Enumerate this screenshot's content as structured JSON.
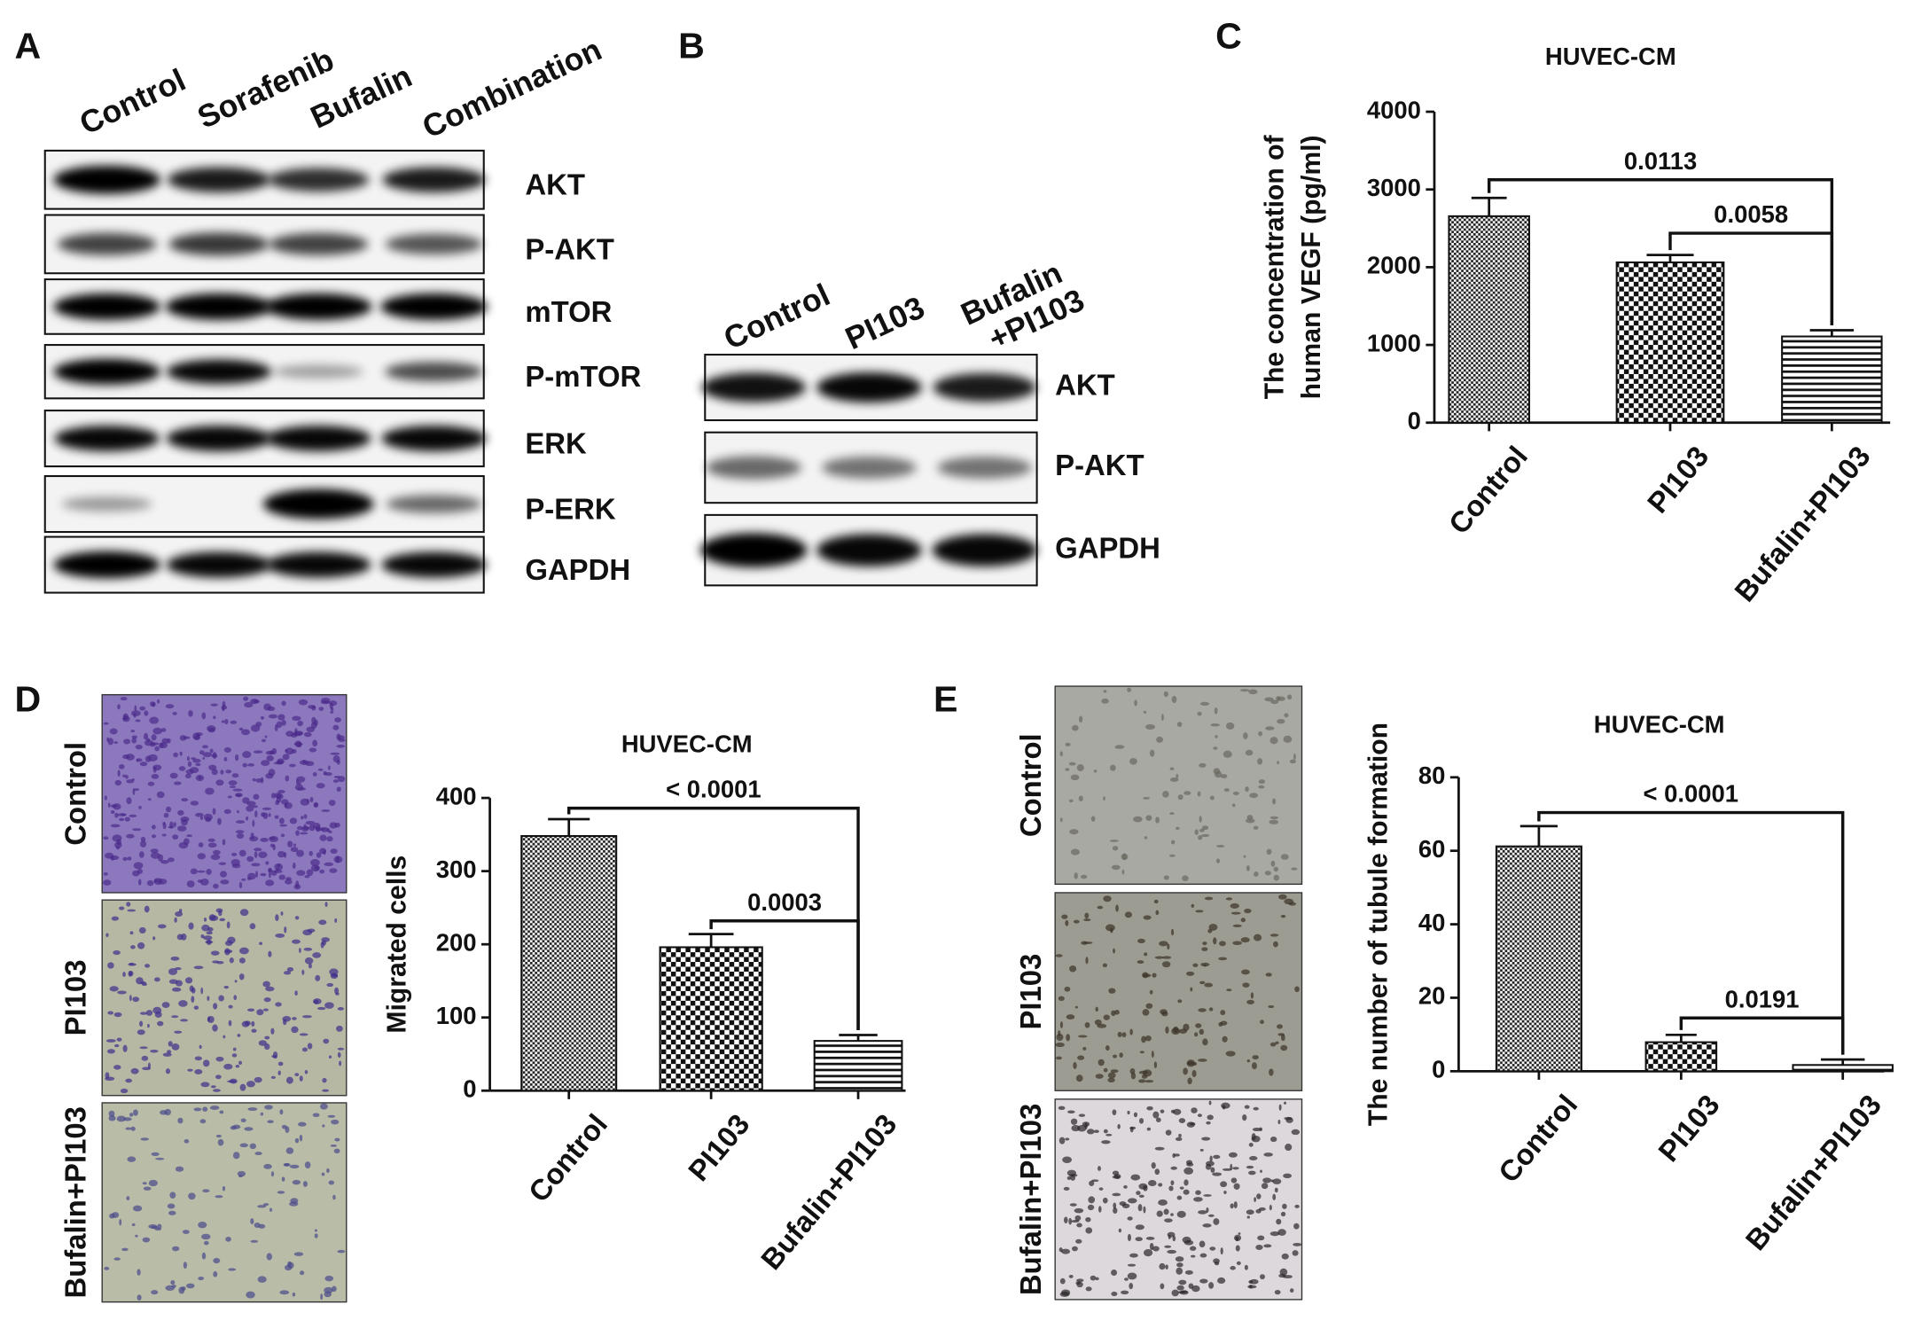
{
  "panels": {
    "A": {
      "letter": "A",
      "lanes": [
        "Control",
        "Sorafenib",
        "Bufalin",
        "Combination"
      ],
      "bands": [
        "AKT",
        "P-AKT",
        "mTOR",
        "P-mTOR",
        "ERK",
        "P-ERK",
        "GAPDH"
      ]
    },
    "B": {
      "letter": "B",
      "lanes": [
        [
          "Control"
        ],
        [
          "PI103"
        ],
        [
          "Bufalin",
          "+PI103"
        ]
      ],
      "bands": [
        "AKT",
        "P-AKT",
        "GAPDH"
      ]
    },
    "C": {
      "letter": "C"
    },
    "D": {
      "letter": "D",
      "image_labels": [
        "Control",
        "PI103",
        "Bufalin+PI103"
      ]
    },
    "E": {
      "letter": "E",
      "image_labels": [
        "Control",
        "PI103",
        "Bufalin+PI103"
      ]
    }
  },
  "chart_data": [
    {
      "type": "bar",
      "title": "HUVEC-CM",
      "ylabel": [
        "The concentration of",
        "human VEGF (pg/ml)"
      ],
      "categories": [
        "Control",
        "PI103",
        "Bufalin+PI103"
      ],
      "values": [
        2656,
        2062,
        1109
      ],
      "errors": [
        235,
        95,
        80
      ],
      "ylim": [
        0,
        4000
      ],
      "yticks": [
        0,
        1000,
        2000,
        3000,
        4000
      ],
      "annotations": [
        {
          "text": "0.0113",
          "y": 3125
        },
        {
          "text": "0.0058",
          "y": 2437
        }
      ]
    },
    {
      "type": "bar",
      "title": "HUVEC-CM",
      "ylabel": "Migrated cells",
      "categories": [
        "Control",
        "PI103",
        "Bufalin+PI103"
      ],
      "values": [
        348,
        196,
        68
      ],
      "errors": [
        23,
        18,
        8
      ],
      "ylim": [
        0,
        400
      ],
      "yticks": [
        0,
        100,
        200,
        300,
        400
      ],
      "annotations": [
        {
          "text": "< 0.0001",
          "y": 386
        },
        {
          "text": "0.0003",
          "y": 232
        }
      ]
    },
    {
      "type": "bar",
      "title": "HUVEC-CM",
      "ylabel": "The number of tubule formation",
      "categories": [
        "Control",
        "PI103",
        "Bufalin+PI103"
      ],
      "values": [
        61.2,
        7.9,
        1.7
      ],
      "errors": [
        5.5,
        2,
        1.5
      ],
      "ylim": [
        0,
        80
      ],
      "yticks": [
        0,
        20,
        40,
        60,
        80
      ],
      "annotations": [
        {
          "text": "< 0.0001",
          "y": 70.4
        },
        {
          "text": "0.0191",
          "y": 14.5
        }
      ]
    }
  ]
}
